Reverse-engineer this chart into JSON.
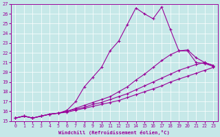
{
  "xlabel": "Windchill (Refroidissement éolien,°C)",
  "xlim": [
    -0.5,
    23.5
  ],
  "ylim": [
    15,
    27
  ],
  "xticks": [
    0,
    1,
    2,
    3,
    4,
    5,
    6,
    7,
    8,
    9,
    10,
    11,
    12,
    13,
    14,
    15,
    16,
    17,
    18,
    19,
    20,
    21,
    22,
    23
  ],
  "yticks": [
    15,
    16,
    17,
    18,
    19,
    20,
    21,
    22,
    23,
    24,
    25,
    26,
    27
  ],
  "background_color": "#c6e8e8",
  "line_color": "#990099",
  "series1_x": [
    0,
    1,
    2,
    3,
    4,
    5,
    6,
    7,
    8,
    9,
    10,
    11,
    12,
    13,
    14,
    15,
    16,
    17,
    18,
    19,
    20,
    21,
    22,
    23
  ],
  "series1_y": [
    15.3,
    15.5,
    15.3,
    15.5,
    15.7,
    15.8,
    16.1,
    17.0,
    18.5,
    19.5,
    20.5,
    22.2,
    23.2,
    24.9,
    26.6,
    26.0,
    25.5,
    26.7,
    24.4,
    22.2,
    22.2,
    21.0,
    20.9,
    20.6
  ],
  "series2_x": [
    0,
    1,
    2,
    3,
    4,
    5,
    6,
    7,
    8,
    9,
    10,
    11,
    12,
    13,
    14,
    15,
    16,
    17,
    18,
    19,
    20,
    21,
    22,
    23
  ],
  "series2_y": [
    15.3,
    15.5,
    15.3,
    15.5,
    15.7,
    15.8,
    16.0,
    16.3,
    16.6,
    16.9,
    17.2,
    17.5,
    18.0,
    18.5,
    19.2,
    19.8,
    20.5,
    21.2,
    21.8,
    22.2,
    22.3,
    21.5,
    21.0,
    20.7
  ],
  "series3_x": [
    0,
    1,
    2,
    3,
    4,
    5,
    6,
    7,
    8,
    9,
    10,
    11,
    12,
    13,
    14,
    15,
    16,
    17,
    18,
    19,
    20,
    21,
    22,
    23
  ],
  "series3_y": [
    15.3,
    15.5,
    15.3,
    15.5,
    15.7,
    15.8,
    16.0,
    16.2,
    16.4,
    16.7,
    16.9,
    17.2,
    17.5,
    17.8,
    18.2,
    18.6,
    19.0,
    19.4,
    19.8,
    20.2,
    20.5,
    20.8,
    21.0,
    20.7
  ],
  "series4_x": [
    0,
    1,
    2,
    3,
    4,
    5,
    6,
    7,
    8,
    9,
    10,
    11,
    12,
    13,
    14,
    15,
    16,
    17,
    18,
    19,
    20,
    21,
    22,
    23
  ],
  "series4_y": [
    15.3,
    15.5,
    15.3,
    15.5,
    15.7,
    15.8,
    15.9,
    16.1,
    16.3,
    16.5,
    16.7,
    16.9,
    17.1,
    17.4,
    17.7,
    18.0,
    18.3,
    18.6,
    19.0,
    19.3,
    19.6,
    19.9,
    20.2,
    20.5
  ]
}
